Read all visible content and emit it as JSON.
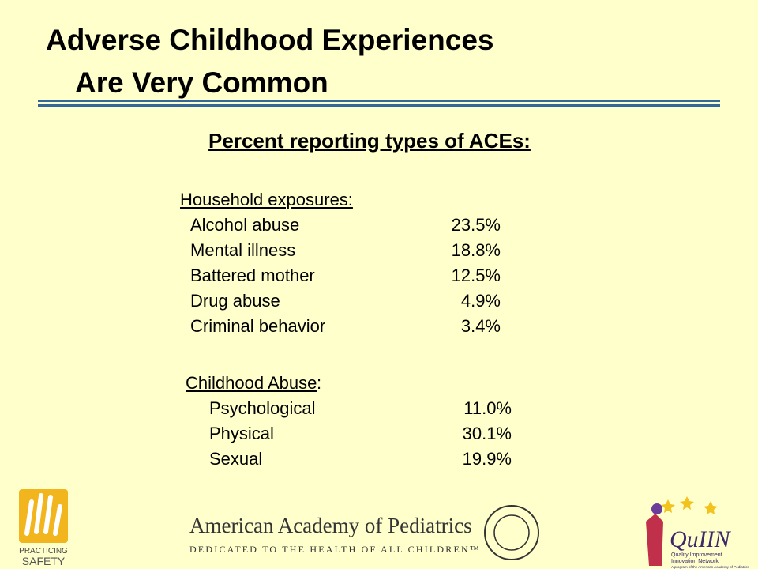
{
  "title": {
    "line1": "Adverse Childhood Experiences",
    "line2": "Are Very Common"
  },
  "subtitle": "Percent reporting types of ACEs:",
  "sections": [
    {
      "heading": "Household exposures:",
      "items": [
        {
          "label": "Alcohol abuse",
          "value": "23.5%"
        },
        {
          "label": "Mental illness",
          "value": "18.8%"
        },
        {
          "label": "Battered mother",
          "value": "12.5%"
        },
        {
          "label": "Drug abuse",
          "value": "4.9%"
        },
        {
          "label": "Criminal behavior",
          "value": "3.4%"
        }
      ]
    },
    {
      "heading": "Childhood Abuse",
      "heading_suffix": ":",
      "items": [
        {
          "label": "Psychological",
          "value": "11.0%"
        },
        {
          "label": "Physical",
          "value": "30.1%"
        },
        {
          "label": "Sexual",
          "value": "19.9%"
        }
      ]
    }
  ],
  "footer": {
    "left_logo": {
      "line1": "PRACTICING",
      "line2": "SAFETY"
    },
    "center_logo": {
      "name": "American Academy of Pediatrics",
      "tagline": "DEDICATED TO THE HEALTH OF ALL CHILDREN™"
    },
    "right_logo": {
      "name": "QuIIN",
      "line1": "Quality Improvement",
      "line2": "Innovation Network",
      "line3": "A program of the American Academy of Pediatrics"
    }
  }
}
